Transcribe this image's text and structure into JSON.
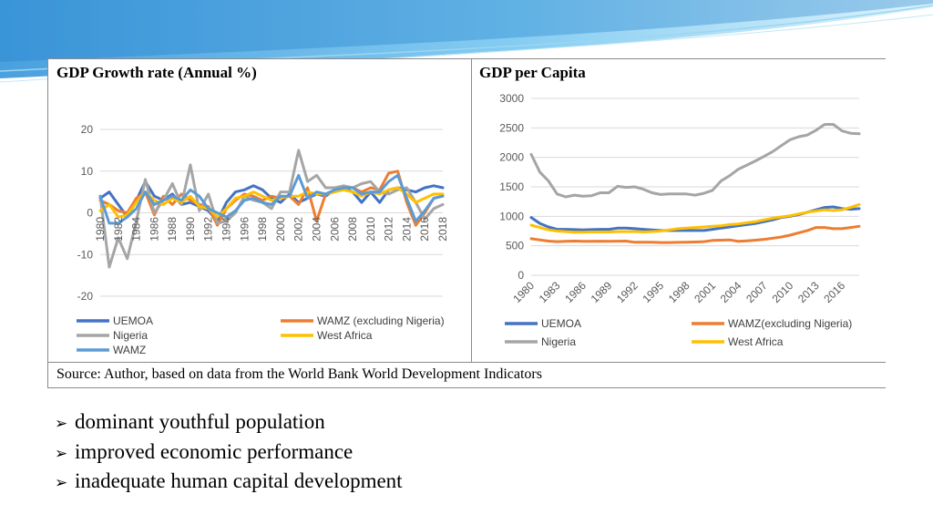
{
  "colors": {
    "uemoa": "#4472c4",
    "wamz_ex_nigeria": "#ed7d31",
    "nigeria": "#a5a5a5",
    "west_africa": "#ffc000",
    "wamz": "#5b9bd5"
  },
  "left_panel": {
    "title": "GDP Growth rate (Annual %)"
  },
  "right_panel": {
    "title": "GDP per Capita"
  },
  "source": "Source: Author, based on data from the World Bank World Development Indicators",
  "bullets": [
    "dominant youthful population",
    "improved economic performance",
    "inadequate human capital development"
  ],
  "chart_data": [
    {
      "type": "line",
      "title": "GDP Growth rate (Annual %)",
      "x": [
        1980,
        1981,
        1982,
        1983,
        1984,
        1985,
        1986,
        1987,
        1988,
        1989,
        1990,
        1991,
        1992,
        1993,
        1994,
        1995,
        1996,
        1997,
        1998,
        1999,
        2000,
        2001,
        2002,
        2003,
        2004,
        2005,
        2006,
        2007,
        2008,
        2009,
        2010,
        2011,
        2012,
        2013,
        2014,
        2015,
        2016,
        2017,
        2018
      ],
      "x_tick_labels": [
        "1980",
        "1982",
        "1984",
        "1986",
        "1988",
        "1990",
        "1992",
        "1994",
        "1996",
        "1998",
        "2000",
        "2002",
        "2004",
        "2006",
        "2008",
        "2010",
        "2012",
        "2014",
        "2016",
        "2018"
      ],
      "ylim": [
        -20,
        20
      ],
      "y_ticks": [
        20,
        10,
        0,
        -10,
        -20
      ],
      "grid": true,
      "legend_position": "bottom",
      "series": [
        {
          "name": "UEMOA",
          "color_key": "uemoa",
          "values": [
            3.5,
            5.0,
            2.0,
            -1.0,
            3.0,
            7.5,
            4.0,
            3.0,
            4.5,
            2.0,
            2.5,
            1.5,
            0.5,
            -2.0,
            2.5,
            5.0,
            5.5,
            6.5,
            5.5,
            3.5,
            2.5,
            4.5,
            2.5,
            3.5,
            4.5,
            4.0,
            5.5,
            6.0,
            5.0,
            2.5,
            5.0,
            2.5,
            5.5,
            6.0,
            5.5,
            5.0,
            6.0,
            6.5,
            6.0
          ]
        },
        {
          "name": "WAMZ (excluding Nigeria)",
          "color_key": "wamz_ex_nigeria",
          "values": [
            3.0,
            2.0,
            0.5,
            0.0,
            3.5,
            5.0,
            -0.5,
            4.0,
            2.0,
            4.5,
            3.0,
            2.0,
            1.5,
            -3.0,
            1.0,
            3.0,
            4.5,
            4.0,
            3.0,
            4.0,
            3.5,
            4.0,
            2.0,
            6.0,
            -2.0,
            4.5,
            5.0,
            6.0,
            6.0,
            5.0,
            6.0,
            5.5,
            9.5,
            10.0,
            2.5,
            -3.0,
            0.0,
            3.5,
            4.0
          ]
        },
        {
          "name": "Nigeria",
          "color_key": "nigeria",
          "values": [
            4.0,
            -13.0,
            -6.0,
            -11.0,
            -2.0,
            8.0,
            0.0,
            3.0,
            7.0,
            2.0,
            11.5,
            0.5,
            4.5,
            -2.5,
            -2.0,
            0.0,
            4.0,
            3.0,
            2.5,
            1.0,
            5.0,
            5.0,
            15.0,
            7.5,
            9.0,
            6.0,
            6.0,
            6.5,
            6.0,
            7.0,
            7.5,
            5.0,
            4.5,
            5.5,
            6.0,
            2.5,
            -1.5,
            1.0,
            2.0
          ]
        },
        {
          "name": "West Africa",
          "color_key": "west_africa",
          "values": [
            0.5,
            2.0,
            -1.0,
            -0.5,
            2.5,
            5.0,
            3.0,
            2.0,
            3.5,
            2.5,
            4.0,
            1.5,
            1.0,
            -1.0,
            1.0,
            3.5,
            4.0,
            5.0,
            4.0,
            3.0,
            3.5,
            4.0,
            4.0,
            5.0,
            4.5,
            4.5,
            5.0,
            5.5,
            5.0,
            4.0,
            5.0,
            4.5,
            5.5,
            6.0,
            4.5,
            2.5,
            3.5,
            4.5,
            4.5
          ]
        },
        {
          "name": "WAMZ",
          "color_key": "wamz",
          "values": [
            4.0,
            -2.5,
            -2.5,
            -1.0,
            1.0,
            5.0,
            2.0,
            3.0,
            4.0,
            3.0,
            5.5,
            4.0,
            1.0,
            0.0,
            -1.0,
            0.5,
            3.0,
            3.5,
            2.5,
            2.0,
            4.0,
            4.0,
            9.0,
            3.5,
            5.0,
            4.5,
            5.5,
            6.0,
            6.0,
            4.5,
            5.0,
            5.0,
            7.5,
            9.0,
            3.5,
            -2.0,
            0.5,
            3.5,
            4.0
          ]
        }
      ]
    },
    {
      "type": "line",
      "title": "GDP per Capita",
      "x": [
        1980,
        1981,
        1982,
        1983,
        1984,
        1985,
        1986,
        1987,
        1988,
        1989,
        1990,
        1991,
        1992,
        1993,
        1994,
        1995,
        1996,
        1997,
        1998,
        1999,
        2000,
        2001,
        2002,
        2003,
        2004,
        2005,
        2006,
        2007,
        2008,
        2009,
        2010,
        2011,
        2012,
        2013,
        2014,
        2015,
        2016,
        2017,
        2018
      ],
      "x_tick_labels": [
        "1980",
        "1983",
        "1986",
        "1989",
        "1992",
        "1995",
        "1998",
        "2001",
        "2004",
        "2007",
        "2010",
        "2013",
        "2016"
      ],
      "ylim": [
        0,
        3000
      ],
      "y_ticks": [
        3000,
        2500,
        2000,
        1500,
        1000,
        500,
        0
      ],
      "grid": true,
      "legend_position": "bottom",
      "series": [
        {
          "name": "UEMOA",
          "color_key": "uemoa",
          "values": [
            980,
            880,
            820,
            780,
            780,
            775,
            770,
            775,
            780,
            780,
            800,
            800,
            790,
            780,
            770,
            760,
            760,
            760,
            760,
            760,
            760,
            780,
            800,
            820,
            840,
            860,
            880,
            910,
            940,
            980,
            1000,
            1030,
            1070,
            1110,
            1150,
            1160,
            1130,
            1120,
            1130
          ]
        },
        {
          "name": "WAMZ(excluding Nigeria)",
          "color_key": "wamz_ex_nigeria",
          "values": [
            620,
            600,
            580,
            570,
            575,
            580,
            575,
            575,
            578,
            575,
            578,
            580,
            560,
            560,
            560,
            555,
            555,
            558,
            560,
            565,
            570,
            590,
            595,
            600,
            575,
            585,
            595,
            610,
            630,
            650,
            680,
            720,
            760,
            810,
            810,
            790,
            790,
            810,
            830
          ]
        },
        {
          "name": "Nigeria",
          "color_key": "nigeria",
          "values": [
            2050,
            1750,
            1600,
            1380,
            1330,
            1360,
            1340,
            1350,
            1400,
            1400,
            1510,
            1490,
            1500,
            1460,
            1400,
            1370,
            1380,
            1380,
            1380,
            1360,
            1390,
            1440,
            1600,
            1690,
            1800,
            1870,
            1940,
            2020,
            2100,
            2200,
            2300,
            2350,
            2380,
            2460,
            2560,
            2560,
            2450,
            2410,
            2400
          ]
        },
        {
          "name": "West Africa",
          "color_key": "west_africa",
          "values": [
            850,
            810,
            770,
            750,
            740,
            730,
            730,
            735,
            735,
            735,
            740,
            740,
            740,
            735,
            740,
            750,
            770,
            790,
            800,
            810,
            820,
            830,
            840,
            860,
            870,
            890,
            910,
            940,
            970,
            990,
            1010,
            1040,
            1070,
            1090,
            1110,
            1100,
            1110,
            1150,
            1200
          ]
        }
      ]
    }
  ]
}
